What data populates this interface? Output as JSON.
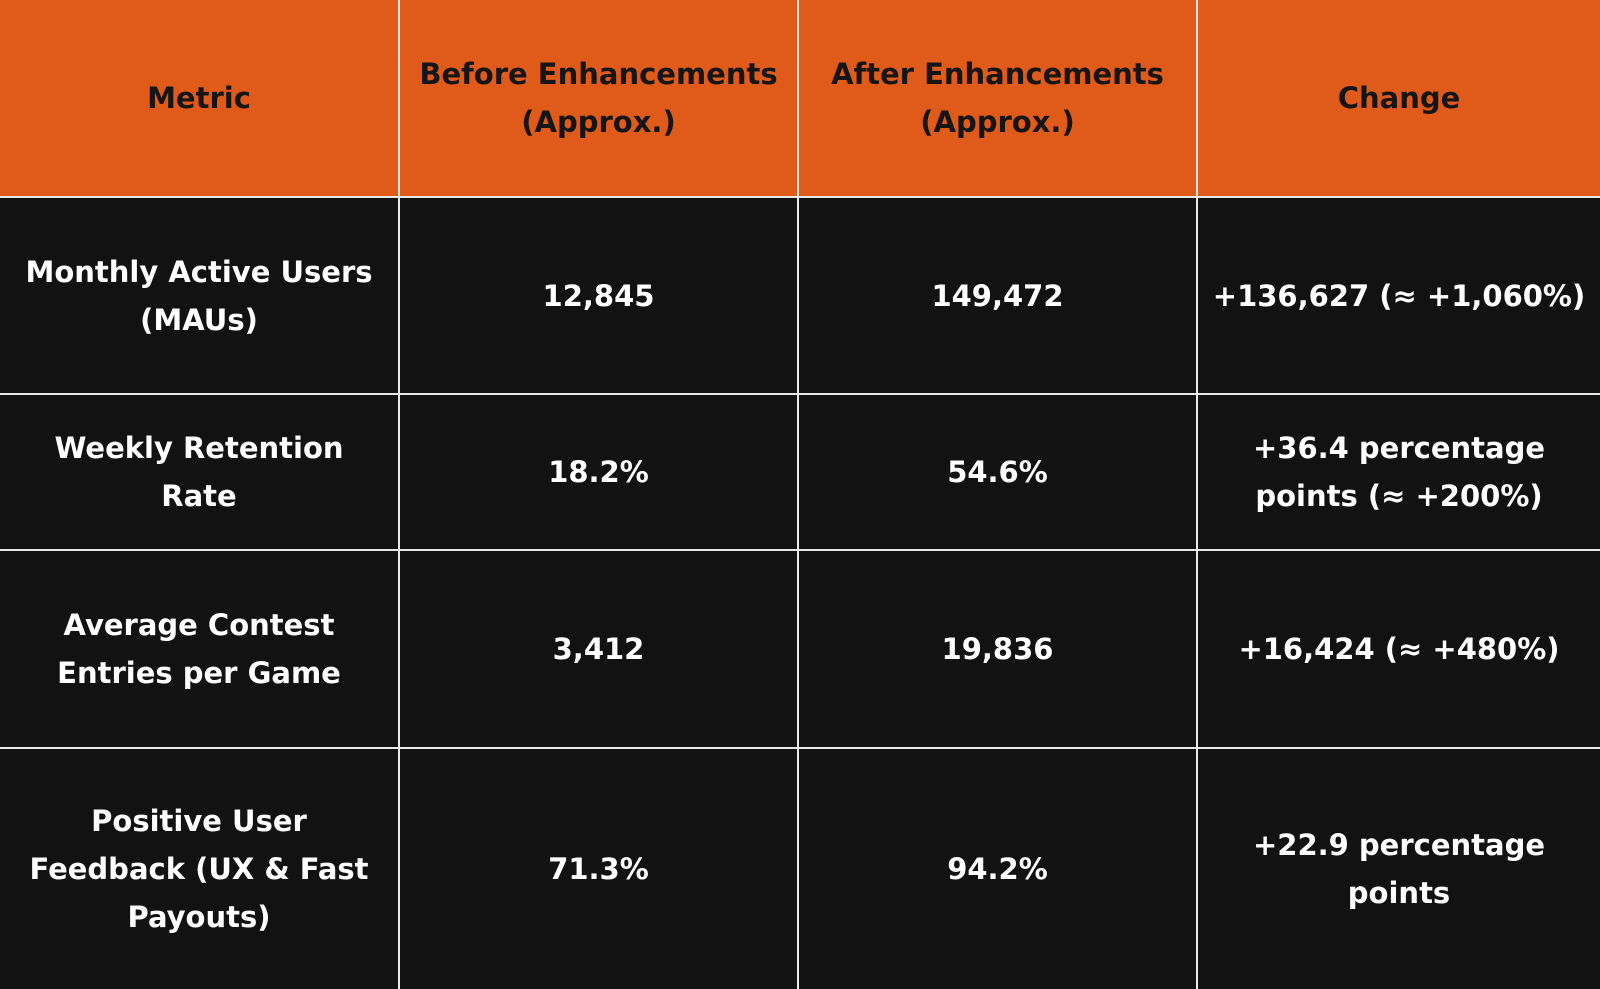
{
  "table": {
    "header": [
      "Metric",
      "Before Enhancements (Approx.)",
      "After Enhancements (Approx.)",
      "Change"
    ],
    "rows": [
      [
        "Monthly Active Users (MAUs)",
        "12,845",
        "149,472",
        "+136,627 (≈ +1,060%)"
      ],
      [
        "Weekly Retention Rate",
        "18.2%",
        "54.6%",
        "+36.4 percentage points (≈ +200%)"
      ],
      [
        "Average Contest Entries per Game",
        "3,412",
        "19,836",
        "+16,424 (≈ +480%)"
      ],
      [
        "Positive User Feedback (UX & Fast Payouts)",
        "71.3%",
        "94.2%",
        "+22.9 percentage points"
      ]
    ]
  }
}
